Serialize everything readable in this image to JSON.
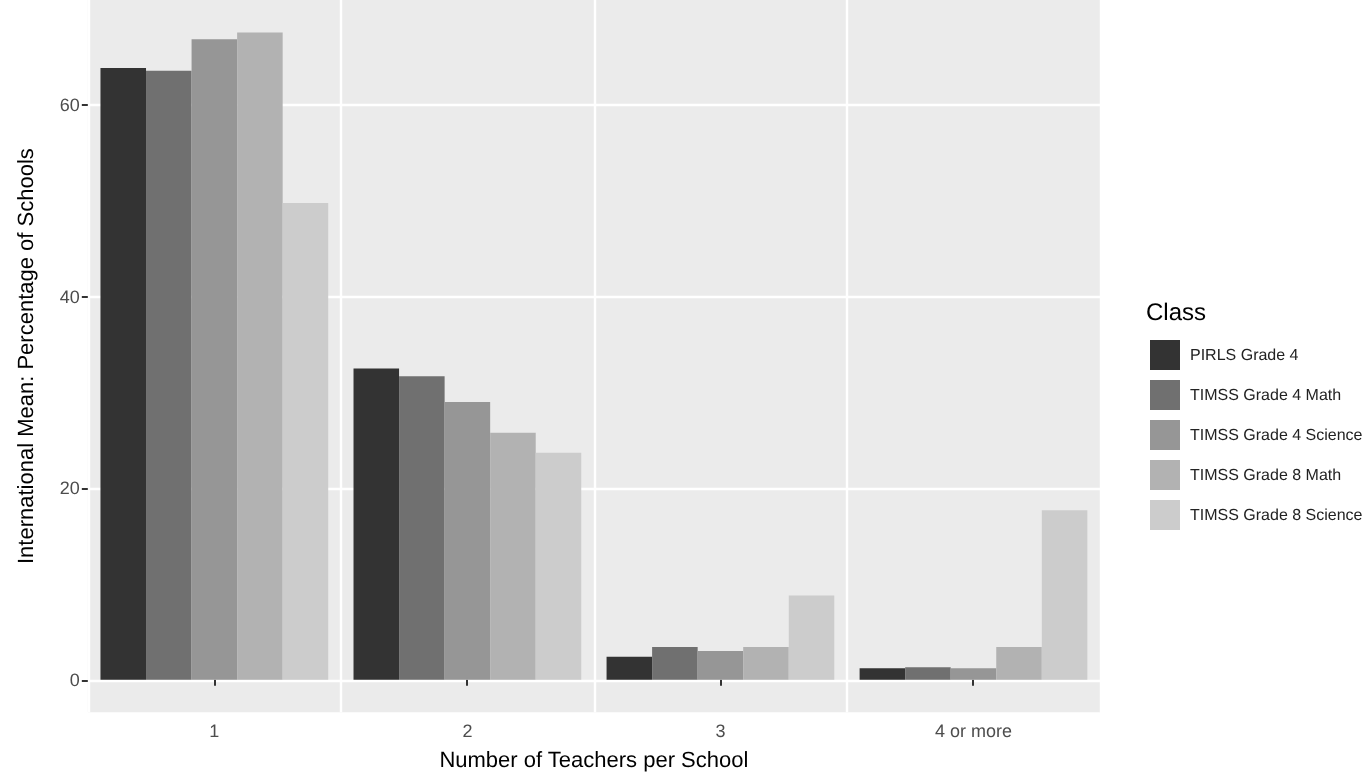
{
  "chart_data": {
    "type": "bar",
    "xlabel": "Number of Teachers per School",
    "ylabel": "International Mean: Percentage of Schools",
    "legend_title": "Class",
    "categories": [
      "1",
      "2",
      "3",
      "4 or more"
    ],
    "series": [
      {
        "name": "PIRLS Grade 4",
        "color": "#333333",
        "values": [
          63.9,
          32.5,
          2.4,
          1.2
        ]
      },
      {
        "name": "TIMSS Grade 4 Math",
        "color": "#707070",
        "values": [
          63.6,
          31.7,
          3.4,
          1.3
        ]
      },
      {
        "name": "TIMSS Grade 4 Science",
        "color": "#969696",
        "values": [
          66.9,
          29.0,
          3.0,
          1.2
        ]
      },
      {
        "name": "TIMSS Grade 8 Math",
        "color": "#b2b2b2",
        "values": [
          67.6,
          25.8,
          3.4,
          3.4
        ]
      },
      {
        "name": "TIMSS Grade 8 Science",
        "color": "#cccccc",
        "values": [
          49.8,
          23.7,
          8.8,
          17.7
        ]
      }
    ],
    "ylim": [
      -3.4,
      71
    ],
    "yticks": [
      0,
      20,
      40,
      60
    ],
    "grid": true,
    "legend": "right"
  }
}
